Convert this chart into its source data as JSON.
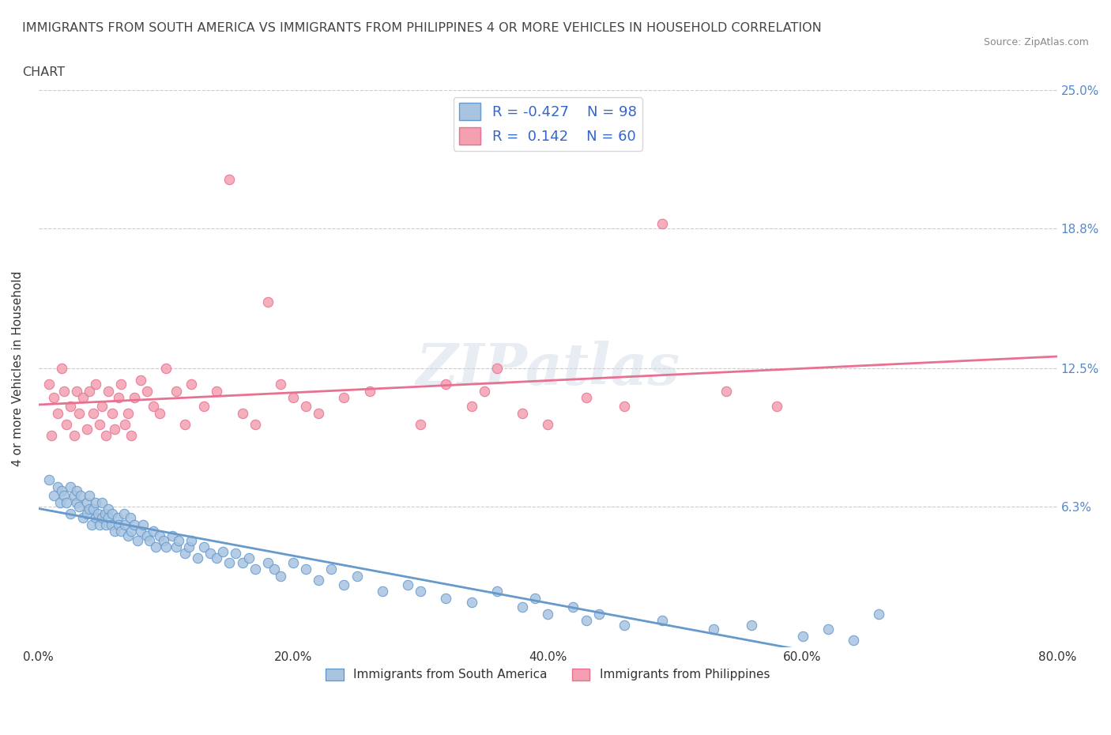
{
  "title_line1": "IMMIGRANTS FROM SOUTH AMERICA VS IMMIGRANTS FROM PHILIPPINES 4 OR MORE VEHICLES IN HOUSEHOLD CORRELATION",
  "title_line2": "CHART",
  "source": "Source: ZipAtlas.com",
  "xlabel": "",
  "ylabel": "4 or more Vehicles in Household",
  "xlim": [
    0.0,
    0.8
  ],
  "ylim": [
    0.0,
    0.25
  ],
  "xtick_labels": [
    "0.0%",
    "20.0%",
    "40.0%",
    "60.0%",
    "80.0%"
  ],
  "xtick_values": [
    0.0,
    0.2,
    0.4,
    0.6,
    0.8
  ],
  "ytick_labels": [
    "6.3%",
    "12.5%",
    "18.8%",
    "25.0%"
  ],
  "ytick_values": [
    0.063,
    0.125,
    0.188,
    0.25
  ],
  "ytick_right_labels": [
    "6.3%",
    "12.5%",
    "18.8%",
    "25.0%"
  ],
  "color_blue": "#a8c4e0",
  "color_pink": "#f4a0b0",
  "line_blue": "#6699cc",
  "line_pink": "#e87090",
  "R_blue": -0.427,
  "N_blue": 98,
  "R_pink": 0.142,
  "N_pink": 60,
  "watermark": "ZIPatlas",
  "legend_label_blue": "Immigrants from South America",
  "legend_label_pink": "Immigrants from Philippines",
  "background_color": "#ffffff",
  "grid_color": "#cccccc",
  "blue_x": [
    0.008,
    0.012,
    0.015,
    0.017,
    0.018,
    0.02,
    0.022,
    0.025,
    0.025,
    0.028,
    0.03,
    0.03,
    0.032,
    0.033,
    0.035,
    0.038,
    0.038,
    0.04,
    0.04,
    0.042,
    0.043,
    0.045,
    0.045,
    0.047,
    0.048,
    0.05,
    0.05,
    0.052,
    0.053,
    0.055,
    0.055,
    0.057,
    0.058,
    0.06,
    0.062,
    0.063,
    0.065,
    0.067,
    0.068,
    0.07,
    0.072,
    0.073,
    0.075,
    0.078,
    0.08,
    0.082,
    0.085,
    0.087,
    0.09,
    0.092,
    0.095,
    0.098,
    0.1,
    0.105,
    0.108,
    0.11,
    0.115,
    0.118,
    0.12,
    0.125,
    0.13,
    0.135,
    0.14,
    0.145,
    0.15,
    0.155,
    0.16,
    0.165,
    0.17,
    0.18,
    0.185,
    0.19,
    0.2,
    0.21,
    0.22,
    0.23,
    0.24,
    0.25,
    0.27,
    0.29,
    0.3,
    0.32,
    0.34,
    0.36,
    0.38,
    0.39,
    0.4,
    0.42,
    0.43,
    0.44,
    0.46,
    0.49,
    0.53,
    0.56,
    0.6,
    0.62,
    0.64,
    0.66
  ],
  "blue_y": [
    0.075,
    0.068,
    0.072,
    0.065,
    0.07,
    0.068,
    0.065,
    0.072,
    0.06,
    0.068,
    0.065,
    0.07,
    0.063,
    0.068,
    0.058,
    0.065,
    0.06,
    0.062,
    0.068,
    0.055,
    0.062,
    0.058,
    0.065,
    0.06,
    0.055,
    0.065,
    0.058,
    0.06,
    0.055,
    0.062,
    0.058,
    0.055,
    0.06,
    0.052,
    0.058,
    0.055,
    0.052,
    0.06,
    0.055,
    0.05,
    0.058,
    0.052,
    0.055,
    0.048,
    0.052,
    0.055,
    0.05,
    0.048,
    0.052,
    0.045,
    0.05,
    0.048,
    0.045,
    0.05,
    0.045,
    0.048,
    0.042,
    0.045,
    0.048,
    0.04,
    0.045,
    0.042,
    0.04,
    0.043,
    0.038,
    0.042,
    0.038,
    0.04,
    0.035,
    0.038,
    0.035,
    0.032,
    0.038,
    0.035,
    0.03,
    0.035,
    0.028,
    0.032,
    0.025,
    0.028,
    0.025,
    0.022,
    0.02,
    0.025,
    0.018,
    0.022,
    0.015,
    0.018,
    0.012,
    0.015,
    0.01,
    0.012,
    0.008,
    0.01,
    0.005,
    0.008,
    0.003,
    0.015
  ],
  "pink_x": [
    0.008,
    0.01,
    0.012,
    0.015,
    0.018,
    0.02,
    0.022,
    0.025,
    0.028,
    0.03,
    0.032,
    0.035,
    0.038,
    0.04,
    0.043,
    0.045,
    0.048,
    0.05,
    0.053,
    0.055,
    0.058,
    0.06,
    0.063,
    0.065,
    0.068,
    0.07,
    0.073,
    0.075,
    0.08,
    0.085,
    0.09,
    0.095,
    0.1,
    0.108,
    0.115,
    0.12,
    0.13,
    0.14,
    0.15,
    0.16,
    0.17,
    0.18,
    0.19,
    0.2,
    0.21,
    0.22,
    0.24,
    0.26,
    0.3,
    0.32,
    0.34,
    0.35,
    0.36,
    0.38,
    0.4,
    0.43,
    0.46,
    0.49,
    0.54,
    0.58
  ],
  "pink_y": [
    0.118,
    0.095,
    0.112,
    0.105,
    0.125,
    0.115,
    0.1,
    0.108,
    0.095,
    0.115,
    0.105,
    0.112,
    0.098,
    0.115,
    0.105,
    0.118,
    0.1,
    0.108,
    0.095,
    0.115,
    0.105,
    0.098,
    0.112,
    0.118,
    0.1,
    0.105,
    0.095,
    0.112,
    0.12,
    0.115,
    0.108,
    0.105,
    0.125,
    0.115,
    0.1,
    0.118,
    0.108,
    0.115,
    0.21,
    0.105,
    0.1,
    0.155,
    0.118,
    0.112,
    0.108,
    0.105,
    0.112,
    0.115,
    0.1,
    0.118,
    0.108,
    0.115,
    0.125,
    0.105,
    0.1,
    0.112,
    0.108,
    0.19,
    0.115,
    0.108
  ]
}
